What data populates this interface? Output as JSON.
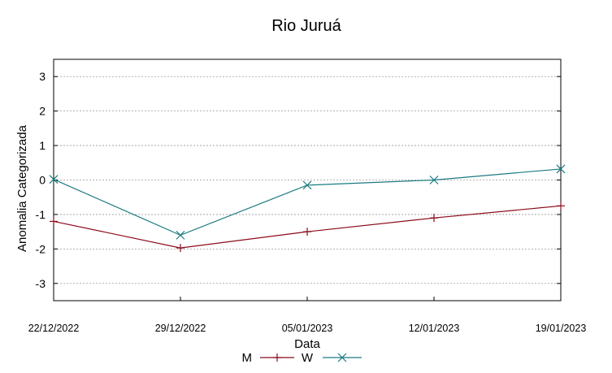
{
  "chart_data": {
    "type": "line",
    "title": "Rio Juruá",
    "xlabel": "Data",
    "ylabel": "Anomalia Categorizada",
    "categories": [
      "22/12/2022",
      "29/12/2022",
      "05/01/2023",
      "12/01/2023",
      "19/01/2023"
    ],
    "yticks": [
      "3",
      "2",
      "1",
      "0",
      "-1",
      "-2",
      "-3"
    ],
    "ylim": [
      -3.5,
      3.5
    ],
    "grid": true,
    "legend_position": "bottom-center",
    "series": [
      {
        "name": "M",
        "color": "#8b0a1a",
        "marker": "plus",
        "values": [
          -1.2,
          -1.97,
          -1.5,
          -1.1,
          -0.75
        ]
      },
      {
        "name": "W",
        "color": "#1a7a80",
        "marker": "cross",
        "values": [
          0.02,
          -1.6,
          -0.15,
          0.0,
          0.32
        ]
      }
    ]
  }
}
